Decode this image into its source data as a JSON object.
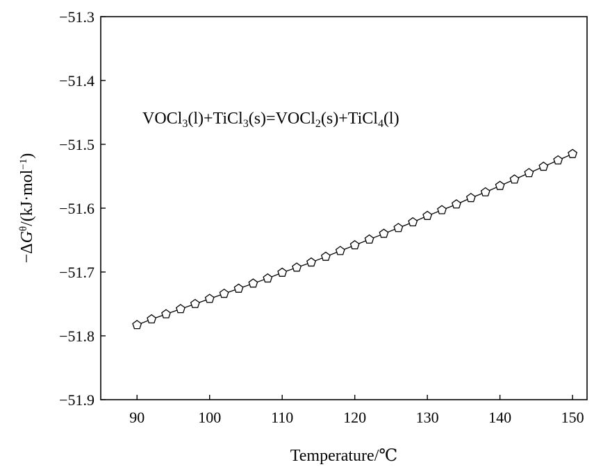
{
  "chart_data": {
    "type": "line",
    "xlabel": "Temperature/℃",
    "ylabel": {
      "prefix": "−Δ",
      "var": "G",
      "sup": "θ",
      "mid": "/(kJ·mol",
      "sup2": "−1",
      "suffix": ")"
    },
    "annotation": [
      {
        "t": "VOCl",
        "s": ""
      },
      {
        "t": "3",
        "s": "sub"
      },
      {
        "t": "(l)+TiCl",
        "s": ""
      },
      {
        "t": "3",
        "s": "sub"
      },
      {
        "t": "(s)=VOCl",
        "s": ""
      },
      {
        "t": "2",
        "s": "sub"
      },
      {
        "t": "(s)+TiCl",
        "s": ""
      },
      {
        "t": "4",
        "s": "sub"
      },
      {
        "t": "(l)",
        "s": ""
      }
    ],
    "xlim": [
      85,
      152
    ],
    "ylim": [
      -51.9,
      -51.3
    ],
    "xticks": [
      90,
      100,
      110,
      120,
      130,
      140,
      150
    ],
    "yticks": [
      -51.3,
      -51.4,
      -51.5,
      -51.6,
      -51.7,
      -51.8,
      -51.9
    ],
    "ytick_labels": [
      "−51.3",
      "−51.4",
      "−51.5",
      "−51.6",
      "−51.7",
      "−51.8",
      "−51.9"
    ],
    "grid": false,
    "marker": "pentagon",
    "series": [
      {
        "x": [
          90,
          92,
          94,
          96,
          98,
          100,
          102,
          104,
          106,
          108,
          110,
          112,
          114,
          116,
          118,
          120,
          122,
          124,
          126,
          128,
          130,
          132,
          134,
          136,
          138,
          140,
          142,
          144,
          146,
          148,
          150
        ],
        "values": [
          -51.783,
          -51.774,
          -51.766,
          -51.758,
          -51.75,
          -51.742,
          -51.734,
          -51.726,
          -51.718,
          -51.71,
          -51.701,
          -51.693,
          -51.685,
          -51.676,
          -51.667,
          -51.658,
          -51.649,
          -51.64,
          -51.631,
          -51.622,
          -51.612,
          -51.603,
          -51.594,
          -51.584,
          -51.575,
          -51.565,
          -51.555,
          -51.545,
          -51.535,
          -51.525,
          -51.515
        ]
      }
    ]
  }
}
